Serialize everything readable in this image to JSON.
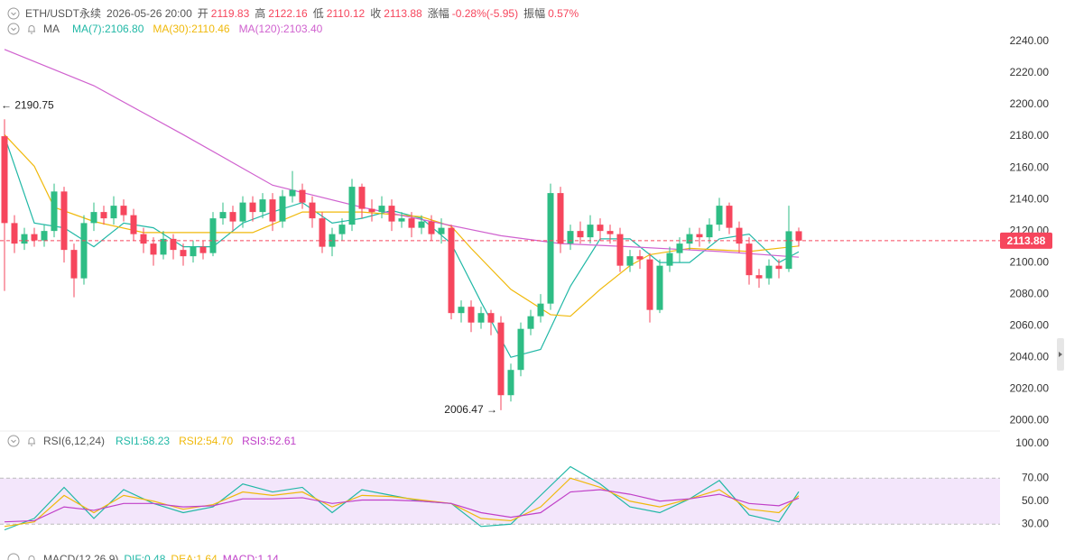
{
  "chart_data": [
    {
      "type": "candlestick",
      "info": {
        "symbol": "ETH/USDT永续",
        "time": "2026-05-26 20:00",
        "items": [
          {
            "label": "开",
            "value": 2119.83
          },
          {
            "label": "高",
            "value": 2122.16
          },
          {
            "label": "低",
            "value": 2110.12
          },
          {
            "label": "收",
            "value": 2113.88
          },
          {
            "label": "涨幅",
            "value": "-0.28%(-5.95)"
          },
          {
            "label": "振幅",
            "value": "0.57%"
          }
        ]
      },
      "ma_label": "MA",
      "up_color": "#2ebd85",
      "down_color": "#f6465d",
      "open": [
        2180,
        2125,
        2112,
        2118,
        2114,
        2120,
        2145,
        2108,
        2090,
        2125,
        2132,
        2128,
        2136,
        2130,
        2118,
        2112,
        2105,
        2115,
        2108,
        2104,
        2110,
        2106,
        2128,
        2132,
        2126,
        2138,
        2132,
        2140,
        2126,
        2142,
        2146,
        2138,
        2128,
        2110,
        2118,
        2124,
        2148,
        2134,
        2132,
        2136,
        2126,
        2128,
        2122,
        2126,
        2118,
        2122,
        2068,
        2072,
        2062,
        2068,
        2062,
        2016,
        2032,
        2058,
        2066,
        2074,
        2144,
        2112,
        2120,
        2116,
        2124,
        2120,
        2118,
        2098,
        2104,
        2102,
        2070,
        2098,
        2106,
        2112,
        2118,
        2116,
        2124,
        2136,
        2122,
        2112,
        2092,
        2090,
        2098,
        2096,
        2119.83
      ],
      "high": [
        2190.75,
        2130,
        2122,
        2122,
        2124,
        2150,
        2148,
        2112,
        2130,
        2138,
        2136,
        2142,
        2140,
        2134,
        2122,
        2116,
        2120,
        2118,
        2112,
        2114,
        2114,
        2132,
        2138,
        2136,
        2142,
        2142,
        2144,
        2144,
        2146,
        2158,
        2150,
        2142,
        2132,
        2122,
        2128,
        2153,
        2150,
        2140,
        2142,
        2140,
        2132,
        2132,
        2130,
        2130,
        2128,
        2124,
        2076,
        2076,
        2072,
        2070,
        2066,
        2036,
        2062,
        2070,
        2080,
        2150,
        2148,
        2124,
        2126,
        2130,
        2128,
        2124,
        2122,
        2108,
        2108,
        2106,
        2102,
        2110,
        2116,
        2122,
        2122,
        2128,
        2141,
        2138,
        2126,
        2116,
        2096,
        2102,
        2102,
        2136,
        2122.16
      ],
      "low": [
        2082,
        2106,
        2108,
        2110,
        2110,
        2116,
        2100,
        2078,
        2086,
        2120,
        2124,
        2124,
        2126,
        2114,
        2106,
        2098,
        2102,
        2102,
        2098,
        2100,
        2102,
        2104,
        2124,
        2120,
        2122,
        2126,
        2128,
        2120,
        2122,
        2138,
        2134,
        2122,
        2106,
        2104,
        2114,
        2120,
        2128,
        2126,
        2128,
        2120,
        2122,
        2116,
        2118,
        2114,
        2112,
        2064,
        2062,
        2056,
        2058,
        2054,
        2006.47,
        2012,
        2028,
        2054,
        2062,
        2070,
        2106,
        2108,
        2112,
        2112,
        2114,
        2112,
        2094,
        2094,
        2096,
        2062,
        2068,
        2094,
        2100,
        2108,
        2110,
        2112,
        2120,
        2118,
        2106,
        2086,
        2084,
        2086,
        2090,
        2094,
        2110.12
      ],
      "close": [
        2125,
        2112,
        2118,
        2114,
        2120,
        2145,
        2108,
        2090,
        2125,
        2132,
        2128,
        2136,
        2130,
        2118,
        2112,
        2105,
        2115,
        2108,
        2104,
        2110,
        2106,
        2128,
        2132,
        2126,
        2138,
        2132,
        2140,
        2126,
        2142,
        2146,
        2138,
        2128,
        2110,
        2118,
        2124,
        2148,
        2134,
        2132,
        2136,
        2126,
        2128,
        2122,
        2126,
        2118,
        2122,
        2068,
        2072,
        2062,
        2068,
        2062,
        2016,
        2032,
        2058,
        2066,
        2074,
        2144,
        2112,
        2120,
        2116,
        2124,
        2120,
        2118,
        2098,
        2104,
        2102,
        2070,
        2098,
        2106,
        2112,
        2118,
        2116,
        2124,
        2136,
        2122,
        2112,
        2092,
        2090,
        2098,
        2096,
        2119.83,
        2113.88
      ],
      "series": [
        {
          "name": "MA(7):2106.80",
          "color": "#21b8a6",
          "x": [
            0,
            3,
            6,
            9,
            12,
            15,
            18,
            21,
            24,
            27,
            30,
            33,
            36,
            39,
            42,
            45,
            48,
            51,
            54,
            57,
            60,
            63,
            66,
            69,
            72,
            75,
            78,
            80
          ],
          "values": [
            2180,
            2125,
            2122,
            2110,
            2125,
            2122,
            2110,
            2110,
            2125,
            2132,
            2138,
            2125,
            2128,
            2133,
            2128,
            2112,
            2075,
            2040,
            2045,
            2085,
            2115,
            2115,
            2100,
            2100,
            2115,
            2118,
            2100,
            2106.8
          ]
        },
        {
          "name": "MA(30):2110.46",
          "color": "#f0b90b",
          "x": [
            0,
            3,
            5,
            9,
            14,
            20,
            25,
            30,
            36,
            42,
            45,
            47,
            51,
            55,
            57,
            60,
            63,
            65,
            69,
            75,
            80
          ],
          "values": [
            2181,
            2161,
            2135,
            2126,
            2119,
            2119,
            2119,
            2132,
            2132,
            2129,
            2123,
            2109,
            2083,
            2067,
            2066,
            2083,
            2098,
            2105,
            2109,
            2107,
            2110.46
          ]
        },
        {
          "name": "MA(120):2103.40",
          "color": "#d062cf",
          "x": [
            0,
            9,
            18,
            27,
            36,
            43,
            50,
            56,
            63,
            72,
            80
          ],
          "values": [
            2235,
            2212,
            2181,
            2149,
            2135,
            2126,
            2117,
            2112,
            2110,
            2107,
            2103.4
          ]
        }
      ],
      "ylim": [
        1995,
        2246
      ],
      "yticks": [
        {
          "value": 2000,
          "label": "2000.00"
        },
        {
          "value": 2020,
          "label": "2020.00"
        },
        {
          "value": 2040,
          "label": "2040.00"
        },
        {
          "value": 2060,
          "label": "2060.00"
        },
        {
          "value": 2080,
          "label": "2080.00"
        },
        {
          "value": 2100,
          "label": "2100.00"
        },
        {
          "value": 2120,
          "label": "2120.00"
        },
        {
          "value": 2140,
          "label": "2140.00"
        },
        {
          "value": 2160,
          "label": "2160.00"
        },
        {
          "value": 2180,
          "label": "2180.00"
        },
        {
          "value": 2200,
          "label": "2200.00"
        },
        {
          "value": 2220,
          "label": "2220.00"
        },
        {
          "value": 2240,
          "label": "2240.00"
        }
      ],
      "grid": false,
      "last_price": 2113.88,
      "annotations": [
        {
          "text": "← 2190.75"
        },
        {
          "text": "2006.47 →"
        }
      ]
    },
    {
      "type": "line",
      "title": "RSI(6,12,24)",
      "series": [
        {
          "name": "RSI1:58.23",
          "color": "#21b8a6",
          "x": [
            0,
            3,
            6,
            9,
            12,
            15,
            18,
            21,
            24,
            27,
            30,
            33,
            36,
            39,
            42,
            45,
            48,
            51,
            54,
            57,
            60,
            63,
            66,
            69,
            72,
            75,
            78,
            80
          ],
          "values": [
            25,
            35,
            62,
            35,
            60,
            48,
            40,
            45,
            65,
            58,
            62,
            40,
            60,
            55,
            50,
            48,
            28,
            30,
            55,
            80,
            65,
            45,
            40,
            52,
            68,
            38,
            32,
            58.23
          ]
        },
        {
          "name": "RSI2:54.70",
          "color": "#f0b90b",
          "x": [
            0,
            3,
            6,
            9,
            12,
            15,
            18,
            21,
            24,
            27,
            30,
            33,
            36,
            39,
            42,
            45,
            48,
            51,
            54,
            57,
            60,
            63,
            66,
            69,
            72,
            75,
            78,
            80
          ],
          "values": [
            28,
            32,
            55,
            40,
            55,
            50,
            43,
            47,
            58,
            55,
            58,
            45,
            55,
            54,
            51,
            48,
            35,
            33,
            45,
            70,
            62,
            50,
            45,
            52,
            60,
            43,
            40,
            54.7
          ]
        },
        {
          "name": "RSI3:52.61",
          "color": "#c040c8",
          "x": [
            0,
            3,
            6,
            9,
            12,
            15,
            18,
            21,
            24,
            27,
            30,
            33,
            36,
            39,
            42,
            45,
            48,
            51,
            54,
            57,
            60,
            63,
            66,
            69,
            72,
            75,
            78,
            80
          ],
          "values": [
            32,
            33,
            45,
            42,
            48,
            48,
            45,
            46,
            52,
            52,
            53,
            48,
            51,
            51,
            50,
            48,
            40,
            36,
            40,
            58,
            60,
            56,
            50,
            52,
            56,
            48,
            46,
            52.61
          ]
        }
      ],
      "ylim": [
        0,
        100
      ],
      "yticks": [
        {
          "value": 30,
          "label": "30.00"
        },
        {
          "value": 50,
          "label": "50.00"
        },
        {
          "value": 70,
          "label": "70.00"
        },
        {
          "value": 100,
          "label": "100.00"
        }
      ],
      "band": [
        30,
        70
      ],
      "grid": false
    },
    {
      "type": "macd",
      "title": "MACD(12,26,9)",
      "legend": [
        "DIF:0.48",
        "DEA:1.64",
        "MACD:1.14"
      ]
    }
  ]
}
